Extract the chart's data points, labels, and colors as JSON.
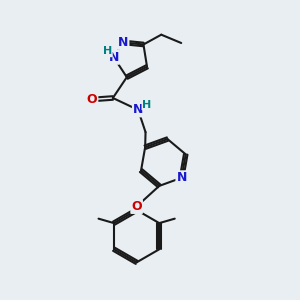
{
  "bg_color": "#e8eef2",
  "bond_color": "#1a1a1a",
  "bond_width": 1.5,
  "dbo": 0.06,
  "atom_colors": {
    "N": "#1a1acc",
    "O": "#cc0000",
    "H": "#008080"
  }
}
